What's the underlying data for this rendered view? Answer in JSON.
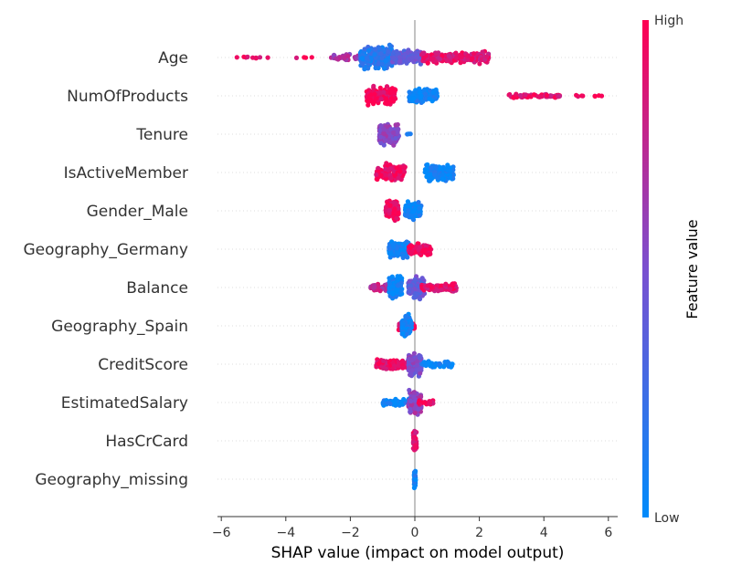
{
  "chart_data": {
    "type": "scatter",
    "subtype": "shap-beeswarm-summary",
    "title": "",
    "xlabel": "SHAP value (impact on model output)",
    "ylabel": "",
    "xlim": [
      -6.3,
      6.3
    ],
    "xticks": [
      "−6",
      "−4",
      "−2",
      "0",
      "2",
      "4",
      "6"
    ],
    "xtick_values": [
      -6,
      -4,
      -2,
      0,
      2,
      4,
      6
    ],
    "grid": false,
    "zero_line": true,
    "colors": {
      "high": "#ff0052",
      "low": "#008bfb",
      "mid": "#7a50d0",
      "zero_line": "#999999",
      "row_grid": "#dddddd"
    },
    "colorbar": {
      "title": "Feature value",
      "high_label": "High",
      "low_label": "Low",
      "placement": "right"
    },
    "features": [
      {
        "name": "Age",
        "clusters": [
          {
            "from": -5.6,
            "to": -4.5,
            "spread": 0.08,
            "count": 10,
            "value": 0.95
          },
          {
            "from": -3.8,
            "to": -3.0,
            "spread": 0.06,
            "count": 4,
            "value": 0.95
          },
          {
            "from": -2.6,
            "to": -1.7,
            "spread": 0.25,
            "count": 40,
            "value": 0.65
          },
          {
            "from": -1.7,
            "to": -0.7,
            "spread": 0.95,
            "count": 260,
            "value": 0.15
          },
          {
            "from": -0.7,
            "to": 0.2,
            "spread": 0.6,
            "count": 180,
            "value": 0.4
          },
          {
            "from": 0.2,
            "to": 2.3,
            "spread": 0.5,
            "count": 220,
            "value": 0.88
          }
        ]
      },
      {
        "name": "NumOfProducts",
        "clusters": [
          {
            "from": -1.5,
            "to": -0.6,
            "spread": 0.75,
            "count": 160,
            "value": 0.95
          },
          {
            "from": -0.2,
            "to": 0.7,
            "spread": 0.6,
            "count": 150,
            "value": 0.05
          },
          {
            "from": 2.9,
            "to": 4.5,
            "spread": 0.18,
            "count": 60,
            "value": 0.9
          },
          {
            "from": 5.0,
            "to": 5.8,
            "spread": 0.1,
            "count": 8,
            "value": 0.95
          }
        ]
      },
      {
        "name": "Tenure",
        "clusters": [
          {
            "from": -1.1,
            "to": -0.5,
            "spread": 0.9,
            "count": 200,
            "value": 0.55
          },
          {
            "from": -0.3,
            "to": -0.1,
            "spread": 0.1,
            "count": 3,
            "value": 0.1
          }
        ]
      },
      {
        "name": "IsActiveMember",
        "clusters": [
          {
            "from": -1.2,
            "to": -0.3,
            "spread": 0.7,
            "count": 150,
            "value": 0.95
          },
          {
            "from": 0.3,
            "to": 1.2,
            "spread": 0.8,
            "count": 150,
            "value": 0.05
          }
        ]
      },
      {
        "name": "Gender_Male",
        "clusters": [
          {
            "from": -0.9,
            "to": -0.5,
            "spread": 0.8,
            "count": 140,
            "value": 0.95
          },
          {
            "from": -0.3,
            "to": 0.2,
            "spread": 0.7,
            "count": 140,
            "value": 0.05
          }
        ]
      },
      {
        "name": "Geography_Germany",
        "clusters": [
          {
            "from": -0.8,
            "to": -0.2,
            "spread": 0.7,
            "count": 160,
            "value": 0.05
          },
          {
            "from": -0.2,
            "to": 0.5,
            "spread": 0.55,
            "count": 120,
            "value": 0.95
          }
        ]
      },
      {
        "name": "Balance",
        "clusters": [
          {
            "from": -1.4,
            "to": -0.6,
            "spread": 0.35,
            "count": 50,
            "value": 0.75
          },
          {
            "from": -0.8,
            "to": -0.4,
            "spread": 1.0,
            "count": 150,
            "value": 0.05
          },
          {
            "from": -0.2,
            "to": 0.3,
            "spread": 0.9,
            "count": 140,
            "value": 0.4
          },
          {
            "from": 0.2,
            "to": 1.3,
            "spread": 0.35,
            "count": 100,
            "value": 0.9
          }
        ]
      },
      {
        "name": "Geography_Spain",
        "clusters": [
          {
            "from": -0.5,
            "to": 0.0,
            "spread": 0.35,
            "count": 70,
            "value": 0.95
          },
          {
            "from": -0.4,
            "to": -0.1,
            "spread": 0.95,
            "count": 150,
            "value": 0.05
          }
        ]
      },
      {
        "name": "CreditScore",
        "clusters": [
          {
            "from": -1.2,
            "to": -0.1,
            "spread": 0.4,
            "count": 150,
            "value": 0.9
          },
          {
            "from": -0.2,
            "to": 0.2,
            "spread": 1.0,
            "count": 150,
            "value": 0.5
          },
          {
            "from": 0.2,
            "to": 1.2,
            "spread": 0.3,
            "count": 40,
            "value": 0.05
          }
        ]
      },
      {
        "name": "EstimatedSalary",
        "clusters": [
          {
            "from": -1.0,
            "to": -0.1,
            "spread": 0.3,
            "count": 80,
            "value": 0.05
          },
          {
            "from": -0.2,
            "to": 0.2,
            "spread": 1.0,
            "count": 140,
            "value": 0.6
          },
          {
            "from": 0.1,
            "to": 0.6,
            "spread": 0.2,
            "count": 25,
            "value": 0.95
          }
        ]
      },
      {
        "name": "HasCrCard",
        "clusters": [
          {
            "from": -0.05,
            "to": 0.05,
            "spread": 0.85,
            "count": 60,
            "value": 0.9
          }
        ]
      },
      {
        "name": "Geography_missing",
        "clusters": [
          {
            "from": -0.02,
            "to": 0.02,
            "spread": 0.8,
            "count": 40,
            "value": 0.05
          }
        ]
      }
    ]
  }
}
